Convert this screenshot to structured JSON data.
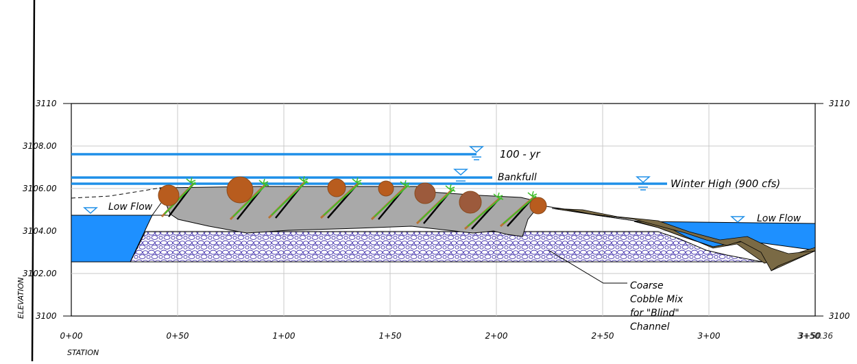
{
  "axes": {
    "y_left_labels": [
      "3110",
      "3108.00",
      "3106.00",
      "3104.00",
      "3102.00",
      "3100"
    ],
    "y_right_labels": [
      "3110",
      "3100"
    ],
    "x_labels": [
      "0+00",
      "0+50",
      "1+00",
      "1+50",
      "2+00",
      "2+50",
      "3+00",
      "3+50"
    ],
    "x_end_label": "3+50.36",
    "x_title": "STATION",
    "y_title": "ELEVATION"
  },
  "water_levels": {
    "hundred_year": "100 - yr",
    "bankfull": "Bankfull",
    "winter_high": "Winter High (900 cfs)",
    "low_flow_left": "Low Flow",
    "low_flow_right": "Low Flow"
  },
  "callout": {
    "line1": "Coarse",
    "line2": "Cobble Mix",
    "line3": "for \"Blind\"",
    "line4": "Channel"
  },
  "colors": {
    "water": "#1e90ff",
    "water_line": "#1e8fe8",
    "fill_gray": "#a9a9a9",
    "log": "#b85c1e",
    "bank_brown": "#7a6a45",
    "cobble": "#3b2aa8",
    "vegetation": "#3fbf2a"
  }
}
